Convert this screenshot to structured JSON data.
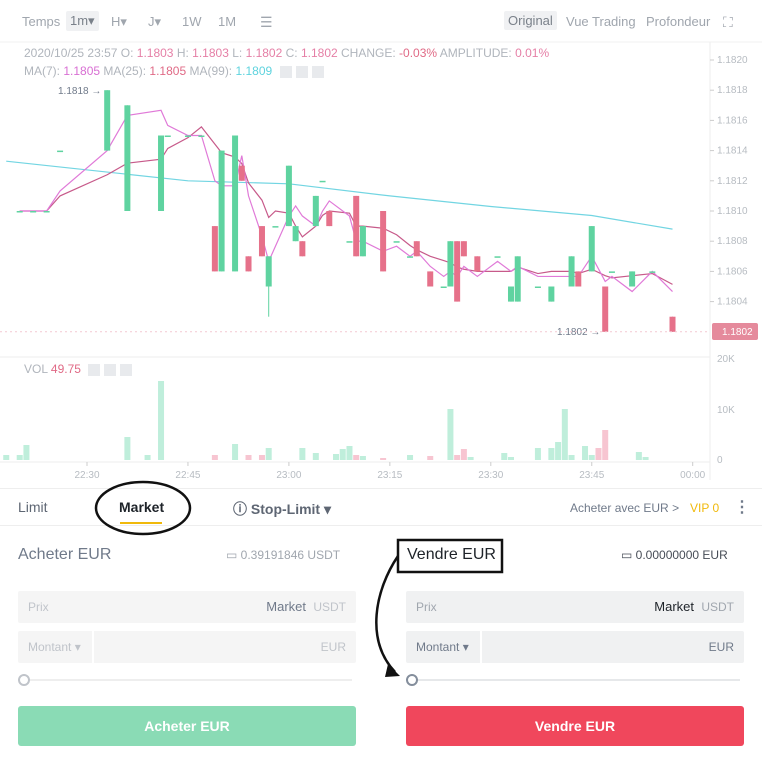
{
  "toolbar": {
    "time_label": "Temps",
    "intervals": [
      "1m▾",
      "H▾",
      "J▾",
      "1W",
      "1M"
    ],
    "views": [
      "Original",
      "Vue Trading",
      "Profondeur"
    ],
    "active_view": "Original"
  },
  "ohlc": {
    "datetime": "2020/10/25 23:57",
    "o_label": "O:",
    "o": "1.1803",
    "h_label": "H:",
    "h": "1.1803",
    "l_label": "L:",
    "l": "1.1802",
    "c_label": "C:",
    "c": "1.1802",
    "change_label": "CHANGE:",
    "change": "-0.03%",
    "amp_label": "AMPLITUDE:",
    "amp": "0.01%"
  },
  "ma": {
    "ma7_label": "MA(7):",
    "ma7": "1.1805",
    "ma25_label": "MA(25):",
    "ma25": "1.1805",
    "ma99_label": "MA(99):",
    "ma99": "1.1809"
  },
  "vol": {
    "label": "VOL",
    "value": "49.75"
  },
  "colors": {
    "up": "#5fd3a0",
    "down": "#e6718a",
    "ma7": "#e07ad8",
    "ma25": "#c75a8a",
    "ma99": "#72d5e2",
    "buy": "#8adbb5",
    "sell": "#f0475c",
    "vip": "#f0b90b"
  },
  "chart_data": {
    "type": "candlestick",
    "price_ticks": [
      "1.1820",
      "1.1818",
      "1.1816",
      "1.1814",
      "1.1812",
      "1.1810",
      "1.1808",
      "1.1806",
      "1.1804"
    ],
    "volume_ticks": [
      "20K",
      "10K",
      "0"
    ],
    "time_ticks": [
      "22:30",
      "22:45",
      "23:00",
      "23:15",
      "23:30",
      "23:45",
      "00:00"
    ],
    "ylim": [
      1.18,
      1.1822
    ],
    "high_marker": "1.1818",
    "low_marker": "1.1802",
    "last_price": "1.1802",
    "candles": [
      [
        "22:20",
        1.181,
        1.181,
        1.181,
        1.181
      ],
      [
        "22:22",
        1.181,
        1.181,
        1.181,
        1.181
      ],
      [
        "22:24",
        1.181,
        1.181,
        1.181,
        1.181
      ],
      [
        "22:26",
        1.1814,
        1.1814,
        1.1814,
        1.1814
      ],
      [
        "22:33",
        1.1814,
        1.1818,
        1.1814,
        1.1818
      ],
      [
        "22:36",
        1.181,
        1.1817,
        1.181,
        1.1817
      ],
      [
        "22:41",
        1.181,
        1.1815,
        1.181,
        1.1815
      ],
      [
        "22:42",
        1.1815,
        1.1815,
        1.1815,
        1.1815
      ],
      [
        "22:45",
        1.1815,
        1.1815,
        1.1815,
        1.1815
      ],
      [
        "22:47",
        1.1815,
        1.1815,
        1.1815,
        1.1815
      ],
      [
        "22:49",
        1.1809,
        1.1809,
        1.1806,
        1.1806
      ],
      [
        "22:50",
        1.1806,
        1.1814,
        1.1806,
        1.1814
      ],
      [
        "22:52",
        1.1806,
        1.1815,
        1.1806,
        1.1815
      ],
      [
        "22:53",
        1.1813,
        1.1813,
        1.1812,
        1.1812
      ],
      [
        "22:54",
        1.1807,
        1.1807,
        1.1806,
        1.1806
      ],
      [
        "22:56",
        1.1809,
        1.1809,
        1.1807,
        1.1807
      ],
      [
        "22:57",
        1.1805,
        1.1807,
        1.1803,
        1.1807
      ],
      [
        "22:58",
        1.1809,
        1.1809,
        1.1809,
        1.1809
      ],
      [
        "23:00",
        1.1809,
        1.1813,
        1.1809,
        1.1813
      ],
      [
        "23:01",
        1.1808,
        1.1809,
        1.1808,
        1.1809
      ],
      [
        "23:02",
        1.1808,
        1.1808,
        1.1807,
        1.1807
      ],
      [
        "23:04",
        1.1809,
        1.1811,
        1.1809,
        1.1811
      ],
      [
        "23:05",
        1.1812,
        1.1812,
        1.1812,
        1.1812
      ],
      [
        "23:06",
        1.181,
        1.181,
        1.1809,
        1.1809
      ],
      [
        "23:09",
        1.1808,
        1.1808,
        1.1808,
        1.1808
      ],
      [
        "23:10",
        1.1811,
        1.1811,
        1.1807,
        1.1807
      ],
      [
        "23:11",
        1.1807,
        1.1809,
        1.1807,
        1.1809
      ],
      [
        "23:14",
        1.181,
        1.181,
        1.1806,
        1.1806
      ],
      [
        "23:16",
        1.1808,
        1.1808,
        1.1808,
        1.1808
      ],
      [
        "23:18",
        1.1807,
        1.1807,
        1.1807,
        1.1807
      ],
      [
        "23:19",
        1.1808,
        1.1808,
        1.1807,
        1.1807
      ],
      [
        "23:21",
        1.1806,
        1.1806,
        1.1805,
        1.1805
      ],
      [
        "23:23",
        1.1805,
        1.1805,
        1.1805,
        1.1805
      ],
      [
        "23:24",
        1.1805,
        1.1808,
        1.1805,
        1.1808
      ],
      [
        "23:25",
        1.1808,
        1.1808,
        1.1804,
        1.1804
      ],
      [
        "23:26",
        1.1808,
        1.1808,
        1.1807,
        1.1807
      ],
      [
        "23:28",
        1.1807,
        1.1807,
        1.1806,
        1.1806
      ],
      [
        "23:31",
        1.1807,
        1.1807,
        1.1807,
        1.1807
      ],
      [
        "23:33",
        1.1804,
        1.1805,
        1.1804,
        1.1805
      ],
      [
        "23:34",
        1.1804,
        1.1807,
        1.1804,
        1.1807
      ],
      [
        "23:37",
        1.1805,
        1.1805,
        1.1805,
        1.1805
      ],
      [
        "23:39",
        1.1804,
        1.1805,
        1.1804,
        1.1805
      ],
      [
        "23:42",
        1.1805,
        1.1807,
        1.1805,
        1.1807
      ],
      [
        "23:43",
        1.1806,
        1.1806,
        1.1805,
        1.1805
      ],
      [
        "23:45",
        1.1806,
        1.1809,
        1.1806,
        1.1809
      ],
      [
        "23:47",
        1.1805,
        1.1805,
        1.1802,
        1.1802
      ],
      [
        "23:48",
        1.1806,
        1.1806,
        1.1806,
        1.1806
      ],
      [
        "23:51",
        1.1805,
        1.1806,
        1.1805,
        1.1806
      ],
      [
        "23:54",
        1.1806,
        1.1806,
        1.1806,
        1.1806
      ],
      [
        "23:57",
        1.1803,
        1.1803,
        1.1802,
        1.1802
      ]
    ],
    "ma99": [
      [
        "22:18",
        1.18133
      ],
      [
        "22:45",
        1.1812
      ],
      [
        "23:00",
        1.18118
      ],
      [
        "23:15",
        1.1811
      ],
      [
        "23:30",
        1.18103
      ],
      [
        "23:45",
        1.18097
      ],
      [
        "23:57",
        1.18088
      ]
    ],
    "volume": [
      [
        "22:18",
        1000,
        1
      ],
      [
        "22:20",
        1000,
        1
      ],
      [
        "22:21",
        3000,
        1
      ],
      [
        "22:36",
        4600,
        1
      ],
      [
        "22:39",
        1000,
        1
      ],
      [
        "22:41",
        15800,
        1
      ],
      [
        "22:49",
        1000,
        0
      ],
      [
        "22:52",
        3200,
        1
      ],
      [
        "22:54",
        1000,
        0
      ],
      [
        "22:56",
        1000,
        0
      ],
      [
        "22:57",
        2400,
        1
      ],
      [
        "23:02",
        2400,
        1
      ],
      [
        "23:04",
        1400,
        1
      ],
      [
        "23:07",
        1200,
        1
      ],
      [
        "23:08",
        2200,
        1
      ],
      [
        "23:09",
        2800,
        1
      ],
      [
        "23:10",
        1000,
        0
      ],
      [
        "23:11",
        800,
        1
      ],
      [
        "23:14",
        400,
        0
      ],
      [
        "23:18",
        1000,
        1
      ],
      [
        "23:21",
        800,
        0
      ],
      [
        "23:24",
        10200,
        1
      ],
      [
        "23:25",
        1000,
        0
      ],
      [
        "23:26",
        2200,
        0
      ],
      [
        "23:27",
        600,
        1
      ],
      [
        "23:32",
        1400,
        1
      ],
      [
        "23:33",
        600,
        1
      ],
      [
        "23:37",
        2400,
        1
      ],
      [
        "23:39",
        2400,
        1
      ],
      [
        "23:40",
        3600,
        1
      ],
      [
        "23:41",
        10200,
        1
      ],
      [
        "23:42",
        1000,
        1
      ],
      [
        "23:44",
        2800,
        1
      ],
      [
        "23:45",
        1000,
        1
      ],
      [
        "23:46",
        2400,
        0
      ],
      [
        "23:47",
        6000,
        0
      ],
      [
        "23:52",
        1600,
        1
      ],
      [
        "23:53",
        600,
        1
      ]
    ]
  },
  "order": {
    "tabs": [
      "Limit",
      "Market",
      "Stop-Limit ▾"
    ],
    "active_tab": "Market",
    "buy_with": "Acheter avec EUR",
    "buy_with_chevron": ">",
    "vip": "VIP 0",
    "buy": {
      "title": "Acheter EUR",
      "balance": "0.39191846 USDT",
      "price_label": "Prix",
      "price_value": "Market",
      "price_unit": "USDT",
      "amount_label": "Montant ▾",
      "amount_unit": "EUR",
      "button": "Acheter EUR"
    },
    "sell": {
      "title": "Vendre EUR",
      "balance": "0.00000000 EUR",
      "price_label": "Prix",
      "price_value": "Market",
      "price_unit": "USDT",
      "amount_label": "Montant ▾",
      "amount_unit": "EUR",
      "button": "Vendre EUR"
    }
  }
}
